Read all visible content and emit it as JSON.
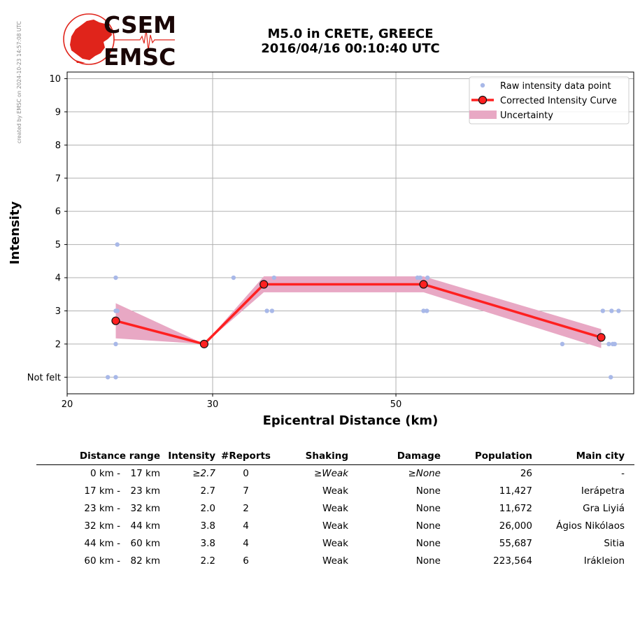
{
  "watermark": "created by EMSC on 2024-10-23 14:57:08 UTC",
  "logo": {
    "line1": "CSEM",
    "line2": "EMSC",
    "color": "#e0241b"
  },
  "title": {
    "line1": "M5.0 in CRETE, GREECE",
    "line2": "2016/04/16 00:10:40 UTC"
  },
  "chart_data": {
    "type": "line",
    "xlabel": "Epicentral Distance (km)",
    "ylabel": "Intensity",
    "x_scale": "log",
    "xlim": [
      20,
      97
    ],
    "ylim": [
      0.5,
      10.2
    ],
    "x_ticks": [
      {
        "value": 20,
        "label": "20"
      },
      {
        "value": 30,
        "label": "30"
      },
      {
        "value": 50,
        "label": "50"
      }
    ],
    "y_ticks": [
      {
        "value": 1,
        "label": "Not felt"
      },
      {
        "value": 2,
        "label": "2"
      },
      {
        "value": 3,
        "label": "3"
      },
      {
        "value": 4,
        "label": "4"
      },
      {
        "value": 5,
        "label": "5"
      },
      {
        "value": 6,
        "label": "6"
      },
      {
        "value": 7,
        "label": "7"
      },
      {
        "value": 8,
        "label": "8"
      },
      {
        "value": 9,
        "label": "9"
      },
      {
        "value": 10,
        "label": "10"
      }
    ],
    "grid": true,
    "legend_position": "top-right",
    "series": [
      {
        "name": "Raw intensity data point",
        "kind": "scatter",
        "color": "#a8b8e8",
        "points": [
          [
            22.4,
            1
          ],
          [
            22.9,
            1
          ],
          [
            22.9,
            2
          ],
          [
            22.9,
            3
          ],
          [
            22.9,
            4
          ],
          [
            23.0,
            5
          ],
          [
            23.0,
            3
          ],
          [
            31.8,
            4
          ],
          [
            34.9,
            3
          ],
          [
            35.4,
            3
          ],
          [
            35.6,
            4
          ],
          [
            53.1,
            4
          ],
          [
            53.5,
            4
          ],
          [
            54.0,
            3
          ],
          [
            54.5,
            3
          ],
          [
            54.6,
            4
          ],
          [
            79.5,
            2
          ],
          [
            89.0,
            3
          ],
          [
            90.5,
            2
          ],
          [
            91.0,
            1
          ],
          [
            91.2,
            3
          ],
          [
            91.5,
            2
          ],
          [
            92.0,
            2
          ],
          [
            93.0,
            3
          ]
        ]
      },
      {
        "name": "Corrected Intensity Curve",
        "kind": "line",
        "color": "#ff2020",
        "x": [
          22.9,
          29.3,
          34.6,
          54.0,
          88.6
        ],
        "y": [
          2.7,
          2.0,
          3.8,
          3.8,
          2.2
        ]
      },
      {
        "name": "Uncertainty",
        "kind": "band",
        "color": "#e8a8c4",
        "x": [
          22.9,
          29.3,
          34.6,
          54.0,
          88.6
        ],
        "lower": [
          2.17,
          2.0,
          3.56,
          3.56,
          1.88
        ],
        "upper": [
          3.23,
          2.0,
          4.04,
          4.04,
          2.45
        ]
      }
    ]
  },
  "table": {
    "headers": [
      "Distance range",
      "Intensity",
      "#Reports",
      "Shaking",
      "Damage",
      "Population",
      "Main city"
    ],
    "rows": [
      {
        "from": "0 km -",
        "to": "17 km",
        "intensity": "≥2.7",
        "reports": "0",
        "shaking": "≥Weak",
        "damage": "≥None",
        "population": "26",
        "city": "-"
      },
      {
        "from": "17 km -",
        "to": "23 km",
        "intensity": "2.7",
        "reports": "7",
        "shaking": "Weak",
        "damage": "None",
        "population": "11,427",
        "city": "Ierápetra"
      },
      {
        "from": "23 km -",
        "to": "32 km",
        "intensity": "2.0",
        "reports": "2",
        "shaking": "Weak",
        "damage": "None",
        "population": "11,672",
        "city": "Gra Liyiá"
      },
      {
        "from": "32 km -",
        "to": "44 km",
        "intensity": "3.8",
        "reports": "4",
        "shaking": "Weak",
        "damage": "None",
        "population": "26,000",
        "city": "Ágios Nikólaos"
      },
      {
        "from": "44 km -",
        "to": "60 km",
        "intensity": "3.8",
        "reports": "4",
        "shaking": "Weak",
        "damage": "None",
        "population": "55,687",
        "city": "Sitia"
      },
      {
        "from": "60 km -",
        "to": "82 km",
        "intensity": "2.2",
        "reports": "6",
        "shaking": "Weak",
        "damage": "None",
        "population": "223,564",
        "city": "Irákleion"
      }
    ]
  }
}
